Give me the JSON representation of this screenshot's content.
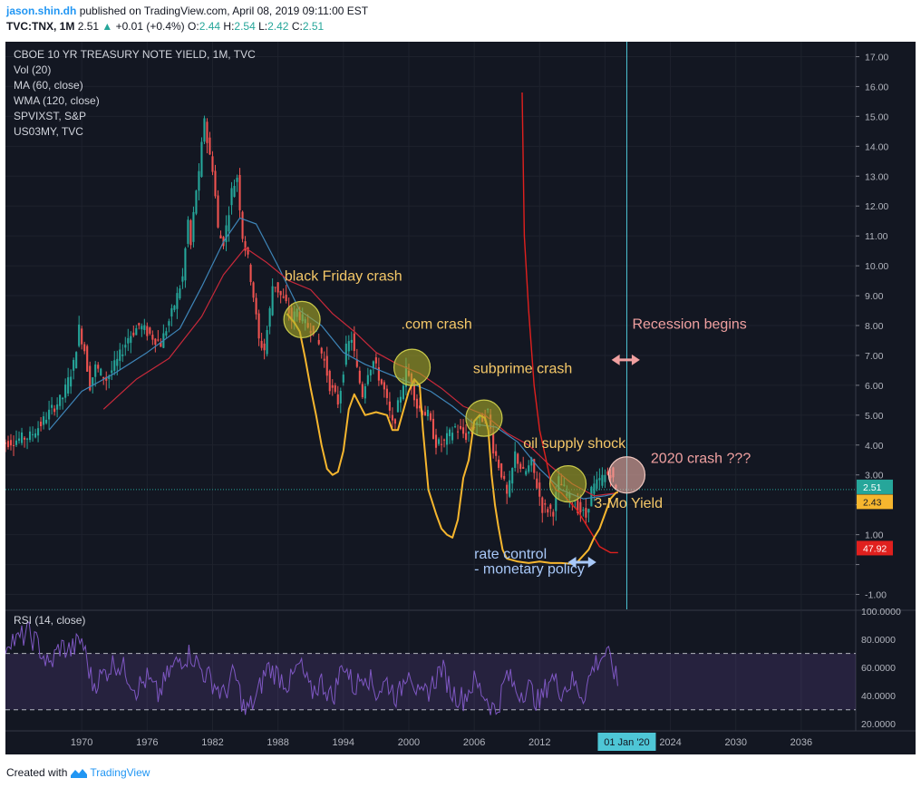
{
  "header": {
    "author": "jason.shin.dh",
    "published": "published on TradingView.com, April 08, 2019 09:11:00 EST",
    "symbol": "TVC:TNX, 1M",
    "last": "2.51",
    "change": "+0.01 (+0.4%)",
    "o_label": "O:",
    "o_value": "2.44",
    "h_label": "H:",
    "h_value": "2.54",
    "l_label": "L:",
    "l_value": "2.42",
    "c_label": "C:",
    "c_value": "2.51"
  },
  "footer": {
    "created_with": "Created with",
    "brand": "TradingView"
  },
  "colors": {
    "background": "#131722",
    "panel_border": "#363a45",
    "grid": "#1e222d",
    "candle_up": "#26a69a",
    "candle_down": "#ef5350",
    "ma": "#3e85b8",
    "wma": "#c8293a",
    "vix": "#e0201e",
    "us03my": "#f6b62e",
    "rsi": "#7e57c2",
    "price_label": "#26a69a",
    "us03my_label": "#f6b62e",
    "vix_label": "#e0201e",
    "annotation_text": "#f5c868",
    "annotation_pink": "#f0a0a0",
    "annotation_blue": "#a8c8f8",
    "date_line": "#4ec6d6"
  },
  "chart_data": [
    {
      "type": "line",
      "title": "CBOE 10 YR TREASURY NOTE YIELD, 1M, TVC",
      "legend": [
        "Vol (20)",
        "MA (60, close)",
        "WMA (120, close)",
        "SPVIXST, S&P",
        "US03MY, TVC"
      ],
      "ylim": [
        -1.5,
        17.5
      ],
      "y_ticks": [
        "17.00",
        "16.00",
        "15.00",
        "14.00",
        "13.00",
        "12.00",
        "11.00",
        "10.00",
        "9.00",
        "8.00",
        "7.00",
        "6.00",
        "5.00",
        "4.00",
        "3.00",
        "2.00",
        "1.00",
        "",
        "-1.00"
      ],
      "x_range": [
        1963,
        2041
      ],
      "x_ticks": [
        "1970",
        "1976",
        "1982",
        "1988",
        "1994",
        "2000",
        "2006",
        "2012",
        "",
        "2024",
        "2030",
        "2036"
      ],
      "x_tick_years": [
        1970,
        1976,
        1982,
        1988,
        1994,
        2000,
        2006,
        2012,
        2018,
        2024,
        2030,
        2036
      ],
      "last_value": "2.51",
      "current_date_label": "01 Jan '20",
      "current_date_year": 2020.0,
      "series": [
        {
          "name": "TNX",
          "x": [
            1962.5,
            1963.5,
            1964.5,
            1965.5,
            1966.5,
            1967.5,
            1968.5,
            1969.5,
            1970.0,
            1970.5,
            1971.0,
            1971.5,
            1972.5,
            1973.5,
            1974.5,
            1975.5,
            1976.5,
            1977.5,
            1978.5,
            1979.5,
            1980.0,
            1980.3,
            1980.6,
            1981.0,
            1981.5,
            1981.8,
            1982.3,
            1982.8,
            1983.3,
            1984.0,
            1984.5,
            1985.0,
            1985.5,
            1986.0,
            1986.5,
            1987.0,
            1987.5,
            1987.8,
            1988.5,
            1989.0,
            1989.5,
            1990.0,
            1990.8,
            1991.5,
            1992.5,
            1993.0,
            1993.8,
            1994.5,
            1995.0,
            1995.5,
            1996.0,
            1996.5,
            1997.0,
            1998.0,
            1998.8,
            1999.5,
            2000.0,
            2000.5,
            2001.0,
            2002.0,
            2002.8,
            2003.5,
            2004.5,
            2005.5,
            2006.5,
            2007.0,
            2007.5,
            2008.0,
            2008.8,
            2009.3,
            2010.0,
            2010.8,
            2011.5,
            2012.5,
            2013.5,
            2014.0,
            2015.0,
            2016.5,
            2017.0,
            2018.0,
            2018.8,
            2019.2
          ],
          "values": [
            4.0,
            4.1,
            4.2,
            4.3,
            4.7,
            5.2,
            5.6,
            6.7,
            7.9,
            7.2,
            6.0,
            6.6,
            6.2,
            6.8,
            7.6,
            8.0,
            7.7,
            7.4,
            8.4,
            9.6,
            11.5,
            10.5,
            12.3,
            13.0,
            15.0,
            14.0,
            13.2,
            11.0,
            10.8,
            12.5,
            13.0,
            11.0,
            10.2,
            9.0,
            7.5,
            7.2,
            8.5,
            9.5,
            9.0,
            8.7,
            8.2,
            8.5,
            8.0,
            7.9,
            6.8,
            6.0,
            5.4,
            7.2,
            7.6,
            6.5,
            5.7,
            6.5,
            6.8,
            5.8,
            4.6,
            5.7,
            6.5,
            6.1,
            5.3,
            5.0,
            4.0,
            4.1,
            4.6,
            4.3,
            4.8,
            4.9,
            5.1,
            3.9,
            3.0,
            2.2,
            3.7,
            3.0,
            3.4,
            1.9,
            1.8,
            2.8,
            2.2,
            1.6,
            2.5,
            2.9,
            3.1,
            2.5
          ]
        },
        {
          "name": "MA (60, close)",
          "x": [
            1967.0,
            1970.0,
            1973.0,
            1976.0,
            1979.0,
            1981.0,
            1983.0,
            1984.5,
            1986.0,
            1988.0,
            1990.0,
            1992.0,
            1994.0,
            1996.0,
            1998.0,
            2000.0,
            2002.0,
            2004.0,
            2006.0,
            2008.0,
            2010.0,
            2012.0,
            2014.0,
            2016.0,
            2018.0,
            2019.2
          ],
          "values": [
            4.5,
            5.8,
            6.4,
            7.1,
            7.9,
            9.3,
            10.8,
            11.6,
            11.4,
            10.0,
            8.5,
            8.0,
            7.1,
            6.7,
            6.4,
            6.1,
            5.8,
            5.3,
            4.7,
            4.6,
            4.1,
            3.2,
            2.5,
            2.2,
            2.3,
            2.4
          ]
        },
        {
          "name": "WMA (120, close)",
          "x": [
            1972.0,
            1975.0,
            1978.0,
            1981.0,
            1983.0,
            1985.0,
            1987.0,
            1989.0,
            1991.0,
            1993.0,
            1995.0,
            1997.0,
            1999.0,
            2001.0,
            2003.0,
            2005.0,
            2007.0,
            2009.0,
            2011.0,
            2013.0,
            2015.0,
            2017.0,
            2019.2
          ],
          "values": [
            5.2,
            6.2,
            6.9,
            8.3,
            9.7,
            10.6,
            10.1,
            9.5,
            9.2,
            8.4,
            7.8,
            7.1,
            6.7,
            6.4,
            5.9,
            5.3,
            5.0,
            4.4,
            4.0,
            3.3,
            2.7,
            2.3,
            2.4
          ]
        },
        {
          "name": "SPVIXST, S&P",
          "x": [
            2010.4,
            2010.6,
            2011.0,
            2011.5,
            2012.0,
            2012.6,
            2013.0,
            2013.5,
            2014.0,
            2014.5,
            2015.0,
            2015.5,
            2016.0,
            2016.5,
            2017.0,
            2017.5,
            2018.0,
            2018.5,
            2019.0,
            2019.2
          ],
          "values": [
            15.8,
            11.0,
            8.5,
            6.0,
            4.5,
            3.5,
            2.8,
            2.5,
            2.4,
            2.2,
            2.0,
            1.8,
            1.5,
            1.2,
            0.9,
            0.6,
            0.5,
            0.4,
            0.4,
            0.4
          ]
        },
        {
          "name": "US03MY, TVC",
          "x": [
            1988.8,
            1989.5,
            1990.0,
            1990.5,
            1991.0,
            1991.5,
            1992.0,
            1992.5,
            1993.0,
            1993.5,
            1994.0,
            1994.5,
            1995.0,
            1996.0,
            1997.0,
            1998.0,
            1998.5,
            1999.0,
            2000.0,
            2000.5,
            2001.0,
            2001.3,
            2001.8,
            2002.5,
            2003.0,
            2003.5,
            2004.0,
            2004.5,
            2005.0,
            2005.5,
            2006.0,
            2006.5,
            2007.0,
            2007.3,
            2007.6,
            2007.9,
            2008.2,
            2008.6,
            2009.0,
            2010.0,
            2011.0,
            2012.0,
            2013.0,
            2014.0,
            2015.0,
            2015.5,
            2016.0,
            2016.5,
            2017.0,
            2017.5,
            2018.0,
            2018.5,
            2019.0,
            2019.2
          ],
          "values": [
            8.4,
            8.1,
            7.8,
            6.9,
            5.9,
            5.0,
            4.0,
            3.2,
            3.0,
            3.1,
            3.8,
            5.2,
            5.7,
            5.0,
            5.1,
            5.0,
            4.5,
            4.5,
            5.8,
            6.2,
            6.0,
            4.5,
            2.5,
            1.7,
            1.2,
            1.0,
            0.9,
            1.5,
            2.9,
            3.5,
            4.8,
            5.0,
            4.9,
            4.5,
            3.0,
            2.0,
            1.3,
            0.5,
            0.2,
            0.1,
            0.05,
            0.1,
            0.05,
            0.05,
            0.02,
            0.1,
            0.3,
            0.5,
            0.9,
            1.2,
            1.7,
            2.2,
            2.4,
            2.43
          ]
        }
      ],
      "annotations": [
        {
          "text": "black Friday crash",
          "x": 1988.6,
          "y": 9.5,
          "color": "annotation_text"
        },
        {
          "text": ".com crash",
          "x": 1999.3,
          "y": 7.9,
          "color": "annotation_text"
        },
        {
          "text": "subprime crash",
          "x": 2005.9,
          "y": 6.4,
          "color": "annotation_text"
        },
        {
          "text": "oil supply shock",
          "x": 2010.5,
          "y": 3.9,
          "color": "annotation_text"
        },
        {
          "text": "Recession begins",
          "x": 2020.5,
          "y": 7.9,
          "color": "annotation_pink"
        },
        {
          "text": "2020 crash ???",
          "x": 2022.2,
          "y": 3.4,
          "color": "annotation_pink"
        },
        {
          "text": "3-Mo Yield",
          "x": 2017.0,
          "y": 1.9,
          "color": "annotation_text"
        },
        {
          "text": "rate control",
          "x": 2006.0,
          "y": 0.2,
          "color": "annotation_blue"
        },
        {
          "text": "- monetary policy",
          "x": 2006.0,
          "y": -0.3,
          "color": "annotation_blue"
        }
      ],
      "circles": [
        {
          "x": 1990.2,
          "y": 8.2
        },
        {
          "x": 2000.3,
          "y": 6.6
        },
        {
          "x": 2006.9,
          "y": 4.9
        },
        {
          "x": 2014.6,
          "y": 2.7
        },
        {
          "x": 2020.0,
          "y": 3.0
        }
      ],
      "labels": [
        {
          "text": "2.51",
          "y": 2.6,
          "color": "price_label"
        },
        {
          "text": "2.43",
          "y": 2.1,
          "color": "us03my_label"
        },
        {
          "text": "47.92",
          "y": 0.55,
          "color": "vix_label"
        }
      ]
    },
    {
      "type": "line",
      "title": "RSI (14, close)",
      "ylim": [
        15,
        100
      ],
      "y_ticks": [
        "100.0000",
        "80.0000",
        "60.0000",
        "40.0000",
        "20.0000"
      ],
      "bands": [
        30,
        70
      ],
      "series": [
        {
          "name": "RSI",
          "x": [
            1962.5,
            1963.5,
            1964.0,
            1965.0,
            1966.0,
            1967.0,
            1968.0,
            1969.0,
            1970.0,
            1971.0,
            1972.0,
            1973.0,
            1974.0,
            1975.0,
            1976.0,
            1977.0,
            1978.0,
            1979.0,
            1980.0,
            1981.0,
            1982.0,
            1983.0,
            1984.0,
            1985.0,
            1986.0,
            1987.0,
            1988.0,
            1989.0,
            1990.0,
            1991.0,
            1992.0,
            1993.0,
            1994.0,
            1995.0,
            1996.0,
            1997.0,
            1998.0,
            1999.0,
            2000.0,
            2001.0,
            2002.0,
            2003.0,
            2004.0,
            2005.0,
            2006.0,
            2007.0,
            2008.0,
            2009.0,
            2010.0,
            2011.0,
            2012.0,
            2013.0,
            2014.0,
            2015.0,
            2016.0,
            2017.0,
            2018.0,
            2018.7,
            2019.2
          ],
          "values": [
            70,
            82,
            78,
            85,
            76,
            60,
            75,
            72,
            80,
            48,
            55,
            64,
            58,
            45,
            52,
            40,
            56,
            66,
            70,
            58,
            50,
            40,
            56,
            28,
            38,
            60,
            55,
            48,
            62,
            42,
            50,
            38,
            64,
            45,
            58,
            42,
            50,
            38,
            62,
            36,
            46,
            60,
            42,
            38,
            50,
            40,
            28,
            55,
            42,
            46,
            34,
            54,
            44,
            50,
            40,
            62,
            70,
            62,
            46
          ]
        }
      ]
    }
  ]
}
